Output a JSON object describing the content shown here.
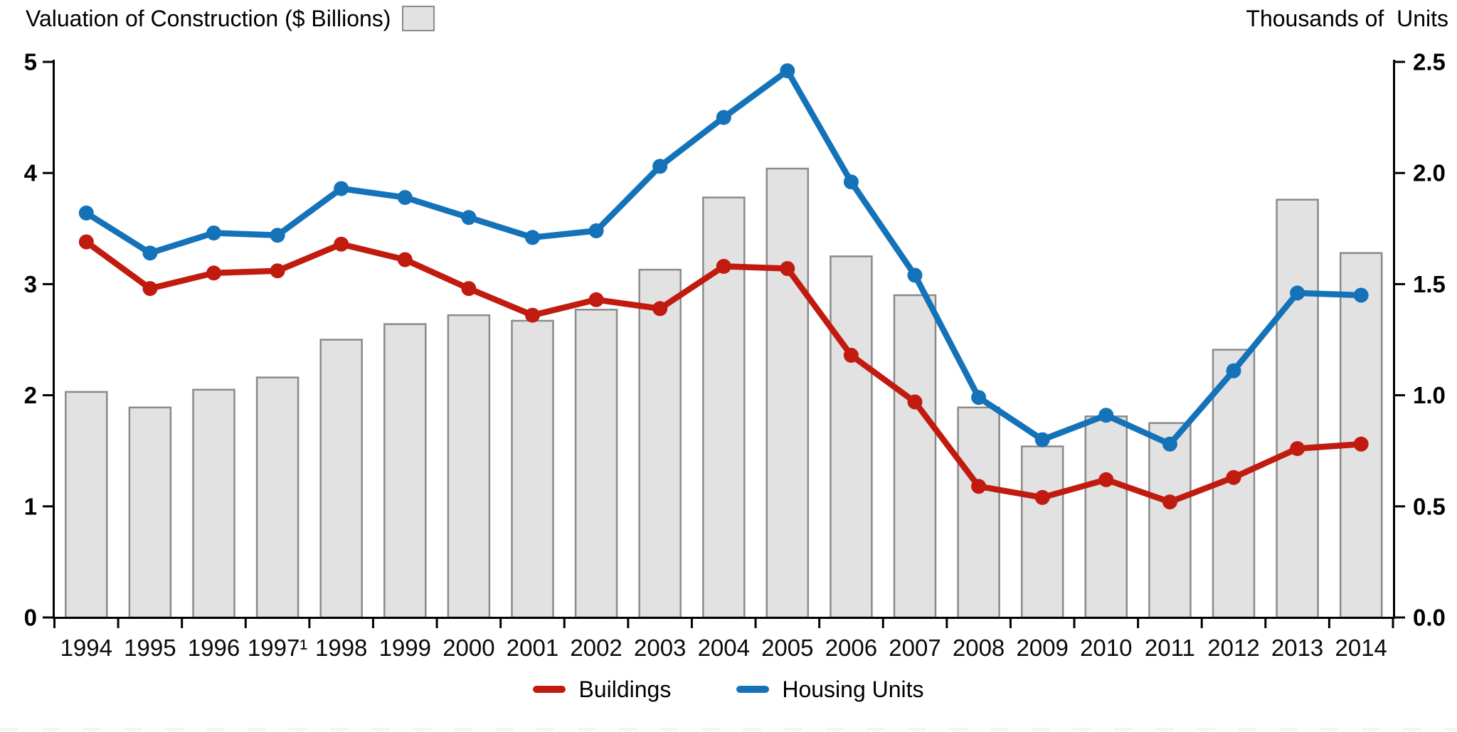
{
  "header": {
    "left_title": "Valuation of Construction ($ Billions)",
    "right_title": "Thousands of  Units"
  },
  "legend": {
    "items": [
      {
        "label": "Buildings",
        "color": "#c11b10"
      },
      {
        "label": "Housing Units",
        "color": "#1472b8"
      }
    ]
  },
  "chart_data": {
    "type": "bar+line",
    "title": "Valuation of Construction ($ Billions) vs Thousands of Units",
    "categories": [
      "1994",
      "1995",
      "1996",
      "1997¹",
      "1998",
      "1999",
      "2000",
      "2001",
      "2002",
      "2003",
      "2004",
      "2005",
      "2006",
      "2007",
      "2008",
      "2009",
      "2010",
      "2011",
      "2012",
      "2013",
      "2014"
    ],
    "bars": {
      "name": "Valuation of Construction ($ Billions)",
      "axis": "left",
      "fill": "#e2e2e2",
      "border": "#8a8a8a",
      "values": [
        2.03,
        1.89,
        2.05,
        2.16,
        2.5,
        2.64,
        2.72,
        2.67,
        2.77,
        3.13,
        3.78,
        4.04,
        3.25,
        2.9,
        1.89,
        1.54,
        1.81,
        1.75,
        2.41,
        3.76,
        3.28
      ]
    },
    "series": [
      {
        "name": "Buildings",
        "axis": "right",
        "color": "#c11b10",
        "values": [
          1.69,
          1.48,
          1.55,
          1.56,
          1.68,
          1.61,
          1.48,
          1.36,
          1.43,
          1.39,
          1.58,
          1.57,
          1.18,
          0.97,
          0.59,
          0.54,
          0.62,
          0.52,
          0.63,
          0.76,
          0.78
        ]
      },
      {
        "name": "Housing Units",
        "axis": "right",
        "color": "#1472b8",
        "values": [
          1.82,
          1.64,
          1.73,
          1.72,
          1.93,
          1.89,
          1.8,
          1.71,
          1.74,
          2.03,
          2.25,
          2.46,
          1.96,
          1.54,
          0.99,
          0.8,
          0.91,
          0.78,
          1.11,
          1.46,
          1.45
        ]
      }
    ],
    "left_axis": {
      "label": "Valuation of Construction ($ Billions)",
      "min": 0,
      "max": 5,
      "ticks": [
        "0",
        "1",
        "2",
        "3",
        "4",
        "5"
      ]
    },
    "right_axis": {
      "label": "Thousands of  Units",
      "min": 0,
      "max": 2.5,
      "ticks": [
        "0.0",
        "0.5",
        "1.0",
        "1.5",
        "2.0",
        "2.5"
      ]
    },
    "grid": false,
    "legend_position": "bottom",
    "axis_color": "#000000"
  }
}
